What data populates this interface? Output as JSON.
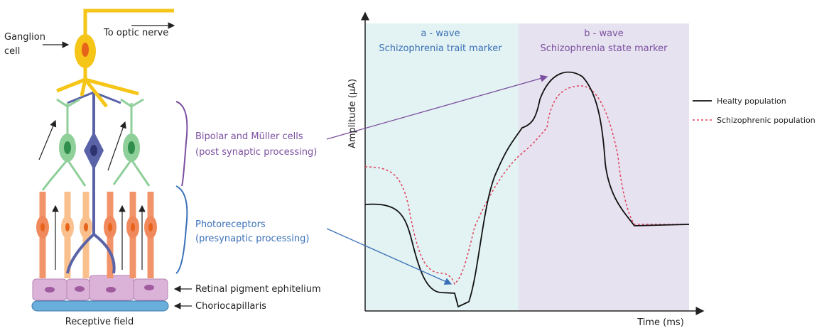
{
  "retina": {
    "ganglion_label": [
      "Ganglion",
      "cell"
    ],
    "optic_nerve": "To optic nerve",
    "bipolar_label": [
      "Bipolar and Müller cells",
      "(post synaptic processing)"
    ],
    "photoreceptor_label": [
      "Photoreceptors",
      "(presynaptic processing)"
    ],
    "rpe_label": "Retinal pigment ephitelium",
    "choriocapillaris_label": "Choriocapillaris",
    "receptive_field": "Receptive field"
  },
  "graph": {
    "y_axis_label": "Amplitude (µA)",
    "x_axis_label": "Time (ms)",
    "regions": [
      {
        "title": "a - wave",
        "subtitle": "Schizophrenia trait marker"
      },
      {
        "title": "b - wave",
        "subtitle": "Schizophrenia state marker"
      }
    ],
    "legend": [
      "Healty population",
      "Schizophrenic population"
    ]
  }
}
